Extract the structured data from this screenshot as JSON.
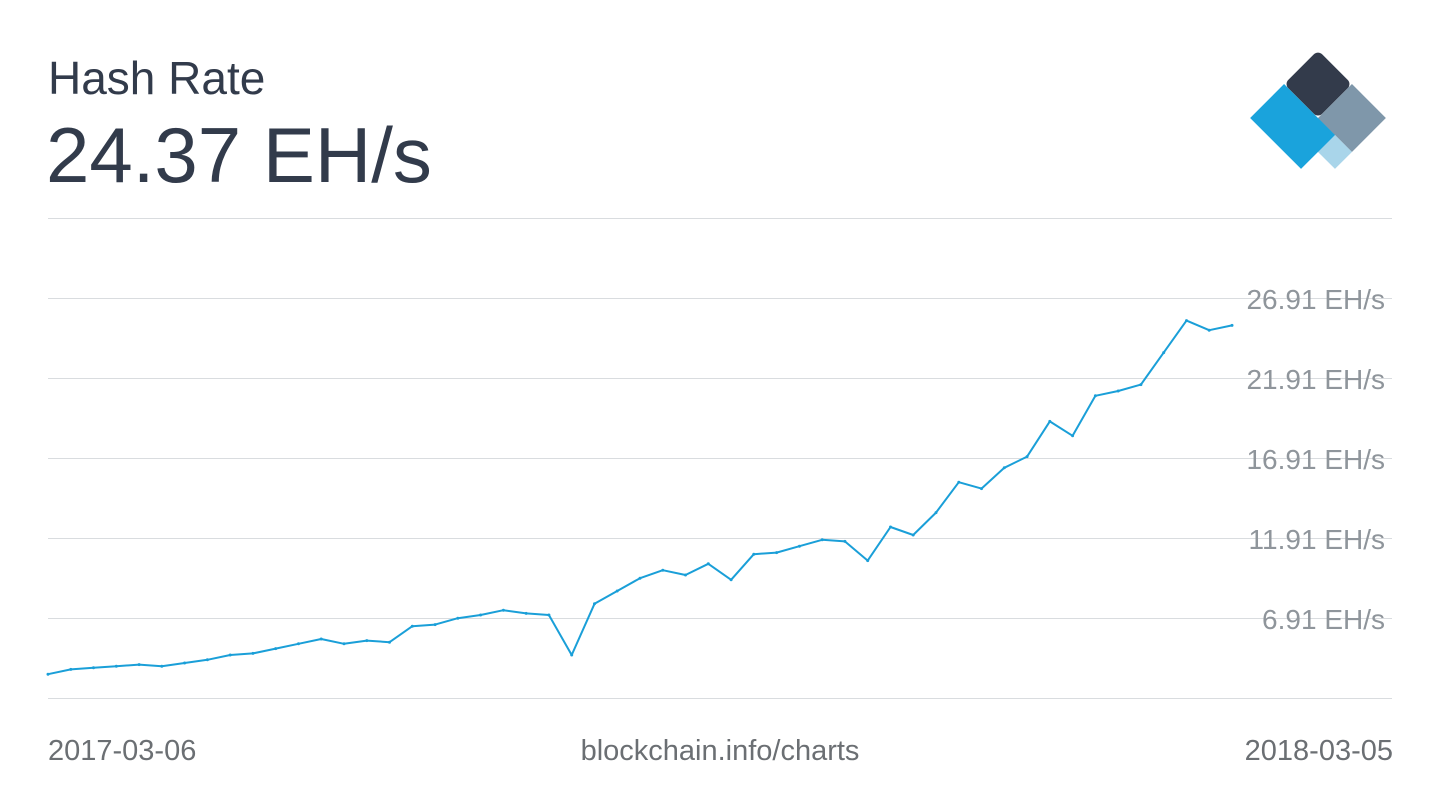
{
  "header": {
    "title": "Hash Rate",
    "current_value": "24.37 EH/s"
  },
  "footer": {
    "start_date": "2017-03-06",
    "source": "blockchain.info/charts",
    "end_date": "2018-03-05"
  },
  "colors": {
    "line": "#1a9fd8",
    "grid": "#d9dcdf",
    "tick_text": "#8f959b",
    "title_text": "#323b4b",
    "logo_dark": "#333b4b",
    "logo_light": "#7f97aa",
    "logo_blue": "#1aa3dc",
    "logo_mid_blue": "#1a6eaf",
    "logo_pale": "#a9d5ea"
  },
  "logo": {
    "icon": "blockchain-logo-icon"
  },
  "chart_data": {
    "type": "line",
    "title": "Hash Rate",
    "xlabel": "",
    "ylabel": "",
    "x_range": [
      "2017-03-06",
      "2018-03-05"
    ],
    "ylim": [
      1.91,
      31.91
    ],
    "y_ticks": [
      6.91,
      11.91,
      16.91,
      21.91,
      26.91
    ],
    "y_tick_labels": [
      "6.91 EH/s",
      "11.91 EH/s",
      "16.91 EH/s",
      "21.91 EH/s",
      "26.91 EH/s"
    ],
    "grid": true,
    "grid_lines": [
      1.91,
      6.91,
      11.91,
      16.91,
      21.91,
      26.91
    ],
    "series": [
      {
        "name": "",
        "x": [
          "2017-03-06",
          "2017-03-13",
          "2017-03-20",
          "2017-03-27",
          "2017-04-03",
          "2017-04-10",
          "2017-04-17",
          "2017-04-24",
          "2017-05-01",
          "2017-05-08",
          "2017-05-15",
          "2017-05-22",
          "2017-05-29",
          "2017-06-05",
          "2017-06-12",
          "2017-06-19",
          "2017-06-26",
          "2017-07-03",
          "2017-07-10",
          "2017-07-17",
          "2017-07-24",
          "2017-07-31",
          "2017-08-07",
          "2017-08-14",
          "2017-08-21",
          "2017-08-28",
          "2017-09-04",
          "2017-09-11",
          "2017-09-18",
          "2017-09-25",
          "2017-10-02",
          "2017-10-09",
          "2017-10-16",
          "2017-10-23",
          "2017-10-30",
          "2017-11-06",
          "2017-11-13",
          "2017-11-20",
          "2017-11-27",
          "2017-12-04",
          "2017-12-11",
          "2017-12-18",
          "2017-12-25",
          "2018-01-01",
          "2018-01-08",
          "2018-01-15",
          "2018-01-22",
          "2018-01-29",
          "2018-02-05",
          "2018-02-12",
          "2018-02-19",
          "2018-02-26",
          "2018-03-05"
        ],
        "values": [
          3.4,
          3.7,
          3.8,
          3.9,
          4.0,
          3.9,
          4.1,
          4.3,
          4.6,
          4.7,
          5.0,
          5.3,
          5.6,
          5.3,
          5.5,
          5.4,
          6.4,
          6.5,
          6.9,
          7.1,
          7.4,
          7.2,
          7.1,
          4.6,
          7.8,
          8.6,
          9.4,
          9.9,
          9.6,
          10.3,
          9.3,
          10.9,
          11.0,
          11.4,
          11.8,
          11.7,
          10.5,
          12.6,
          12.1,
          13.5,
          15.4,
          15.0,
          16.3,
          17.0,
          19.2,
          18.3,
          20.8,
          21.1,
          21.5,
          23.5,
          25.5,
          24.9,
          25.2
        ]
      }
    ]
  }
}
